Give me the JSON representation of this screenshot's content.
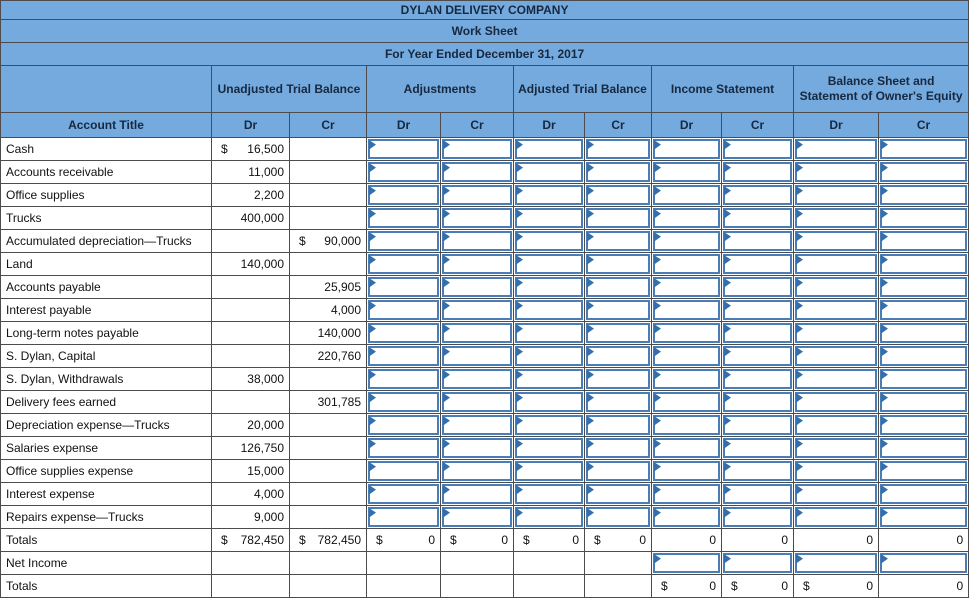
{
  "header": {
    "company": "DYLAN DELIVERY COMPANY",
    "doc_title": "Work Sheet",
    "period": "For Year Ended December 31, 2017"
  },
  "columns": {
    "account_title": "Account Title",
    "groups": [
      {
        "label": "Unadjusted Trial Balance"
      },
      {
        "label": "Adjustments"
      },
      {
        "label": "Adjusted Trial Balance"
      },
      {
        "label": "Income Statement"
      },
      {
        "label": "Balance Sheet  and Statement of Owner's Equity"
      }
    ]
  },
  "labels": {
    "dr": "Dr",
    "cr": "Cr"
  },
  "input_cell_columns": [
    "adjustments-dr",
    "adjustments-cr",
    "adjusted-tb-dr",
    "adjusted-tb-cr",
    "income-stmt-dr",
    "income-stmt-cr",
    "balance-sheet-dr",
    "balance-sheet-cr"
  ],
  "rows": [
    {
      "account": "Cash",
      "dr_sym": "$",
      "dr": "16,500",
      "cr_sym": "",
      "cr": ""
    },
    {
      "account": "Accounts receivable",
      "dr_sym": "",
      "dr": "11,000",
      "cr_sym": "",
      "cr": ""
    },
    {
      "account": "Office supplies",
      "dr_sym": "",
      "dr": "2,200",
      "cr_sym": "",
      "cr": ""
    },
    {
      "account": "Trucks",
      "dr_sym": "",
      "dr": "400,000",
      "cr_sym": "",
      "cr": ""
    },
    {
      "account": "Accumulated depreciation—Trucks",
      "dr_sym": "",
      "dr": "",
      "cr_sym": "$",
      "cr": "90,000"
    },
    {
      "account": "Land",
      "dr_sym": "",
      "dr": "140,000",
      "cr_sym": "",
      "cr": ""
    },
    {
      "account": "Accounts payable",
      "dr_sym": "",
      "dr": "",
      "cr_sym": "",
      "cr": "25,905"
    },
    {
      "account": "Interest payable",
      "dr_sym": "",
      "dr": "",
      "cr_sym": "",
      "cr": "4,000"
    },
    {
      "account": "Long-term notes payable",
      "dr_sym": "",
      "dr": "",
      "cr_sym": "",
      "cr": "140,000"
    },
    {
      "account": "S. Dylan, Capital",
      "dr_sym": "",
      "dr": "",
      "cr_sym": "",
      "cr": "220,760"
    },
    {
      "account": "S. Dylan, Withdrawals",
      "dr_sym": "",
      "dr": "38,000",
      "cr_sym": "",
      "cr": ""
    },
    {
      "account": "Delivery fees earned",
      "dr_sym": "",
      "dr": "",
      "cr_sym": "",
      "cr": "301,785"
    },
    {
      "account": "Depreciation expense—Trucks",
      "dr_sym": "",
      "dr": "20,000",
      "cr_sym": "",
      "cr": ""
    },
    {
      "account": "Salaries expense",
      "dr_sym": "",
      "dr": "126,750",
      "cr_sym": "",
      "cr": ""
    },
    {
      "account": "Office supplies expense",
      "dr_sym": "",
      "dr": "15,000",
      "cr_sym": "",
      "cr": ""
    },
    {
      "account": "Interest expense",
      "dr_sym": "",
      "dr": "4,000",
      "cr_sym": "",
      "cr": ""
    },
    {
      "account": "Repairs expense—Trucks",
      "dr_sym": "",
      "dr": "9,000",
      "cr_sym": "",
      "cr": ""
    }
  ],
  "totals_row": {
    "label": "Totals",
    "cells": [
      {
        "sym": "$",
        "val": "782,450"
      },
      {
        "sym": "$",
        "val": "782,450"
      },
      {
        "sym": "$",
        "val": "0"
      },
      {
        "sym": "$",
        "val": "0"
      },
      {
        "sym": "$",
        "val": "0"
      },
      {
        "sym": "$",
        "val": "0"
      },
      {
        "sym": "",
        "val": "0"
      },
      {
        "sym": "",
        "val": "0"
      },
      {
        "sym": "",
        "val": "0"
      },
      {
        "sym": "",
        "val": "0"
      }
    ]
  },
  "net_income_row": {
    "label": "Net Income"
  },
  "final_totals_row": {
    "label": "Totals",
    "cells": [
      {
        "sym": "$",
        "val": "0"
      },
      {
        "sym": "$",
        "val": "0"
      },
      {
        "sym": "$",
        "val": "0"
      },
      {
        "sym": "",
        "val": "0"
      }
    ]
  },
  "colors": {
    "header_blue": "#74aade",
    "grid_line": "#4c4c4c",
    "input_border_blue": "#4a7db5",
    "flag_blue": "#336fae"
  }
}
